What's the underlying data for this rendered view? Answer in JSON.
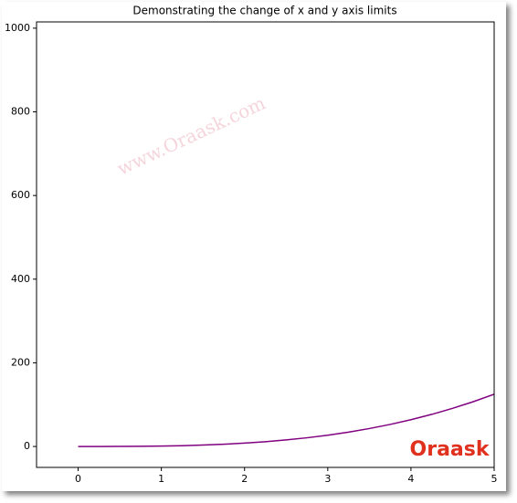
{
  "chart_data": {
    "type": "line",
    "title": "Demonstrating the change of x and y axis limits",
    "x": [
      0,
      0.25,
      0.5,
      0.75,
      1,
      1.25,
      1.5,
      1.75,
      2,
      2.25,
      2.5,
      2.75,
      3,
      3.25,
      3.5,
      3.75,
      4,
      4.25,
      4.5,
      4.75,
      5
    ],
    "series": [
      {
        "color": "#800080",
        "values": [
          0,
          0.015625,
          0.125,
          0.421875,
          1,
          1.953125,
          3.375,
          5.359375,
          8,
          11.390625,
          15.625,
          20.796875,
          27,
          34.328125,
          42.875,
          52.734375,
          64,
          76.765625,
          91.125,
          107.171875,
          125
        ]
      }
    ],
    "xlim": [
      -0.5,
      5
    ],
    "ylim": [
      -50,
      1015
    ],
    "xticks": [
      0,
      1,
      2,
      3,
      4,
      5
    ],
    "yticks": [
      0,
      200,
      400,
      600,
      800,
      1000
    ],
    "grid": false,
    "watermark": "www.Oraask.com",
    "logo": "Oraask"
  }
}
